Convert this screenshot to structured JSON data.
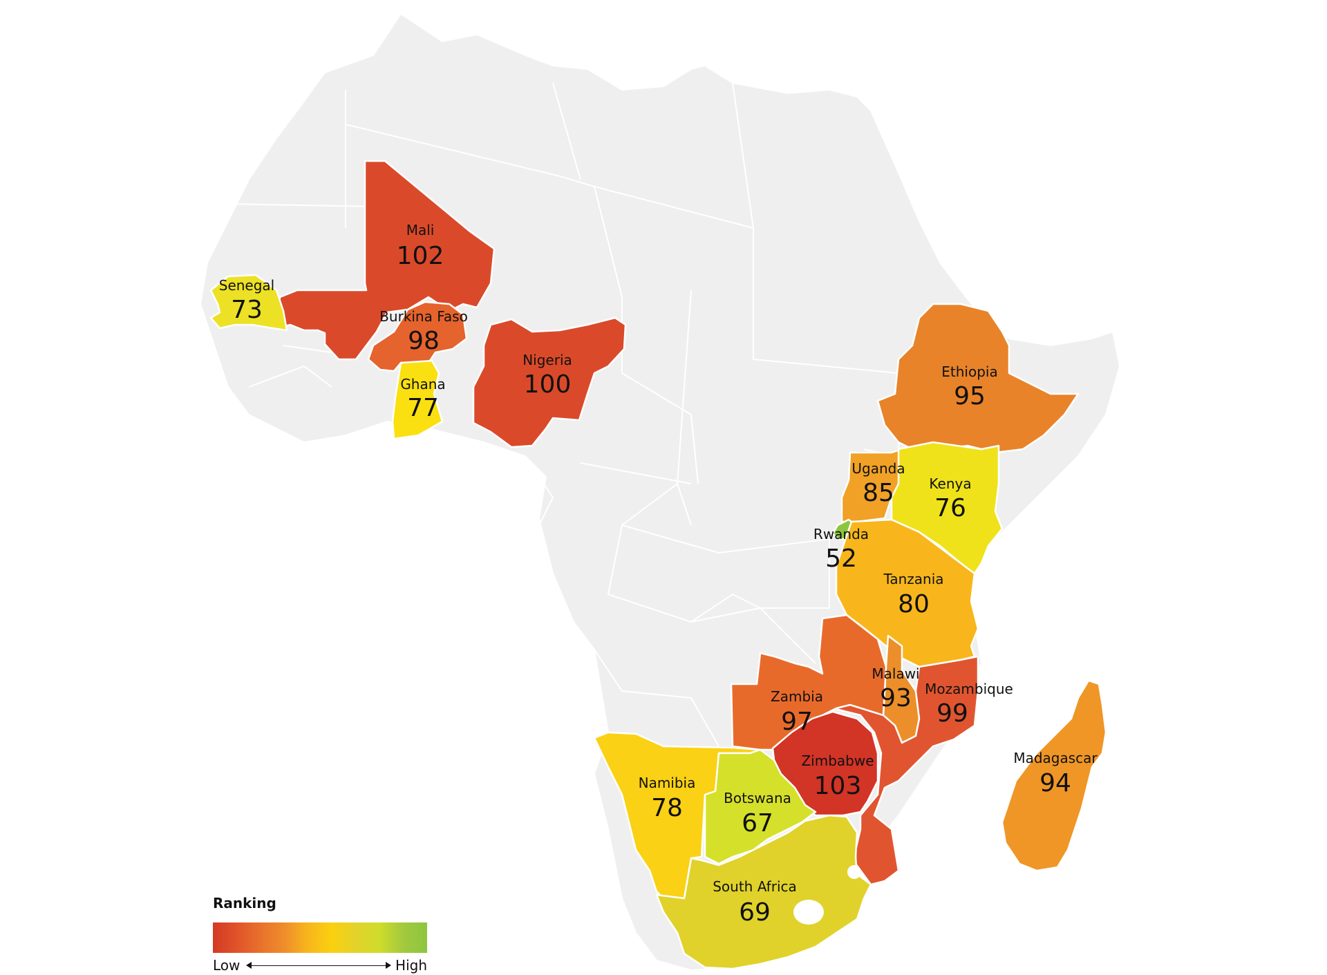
{
  "legend": {
    "title": "Ranking",
    "low": "Low",
    "high": "High",
    "colors": [
      "#d33a24",
      "#e0532a",
      "#e8712c",
      "#ef8d2b",
      "#f8b61c",
      "#fbd010",
      "#e3d22a",
      "#cfdc2b",
      "#a3c93e",
      "#8cc63f"
    ]
  },
  "countries": [
    {
      "id": "mali",
      "name": "Mali",
      "value": "102",
      "color": "#da4a2a"
    },
    {
      "id": "senegal",
      "name": "Senegal",
      "value": "73",
      "color": "#ece124"
    },
    {
      "id": "burkina-faso",
      "name": "Burkina Faso",
      "value": "98",
      "color": "#e5632c"
    },
    {
      "id": "ghana",
      "name": "Ghana",
      "value": "77",
      "color": "#fae010"
    },
    {
      "id": "nigeria",
      "name": "Nigeria",
      "value": "100",
      "color": "#da4a2a"
    },
    {
      "id": "ethiopia",
      "name": "Ethiopia",
      "value": "95",
      "color": "#e8832a"
    },
    {
      "id": "uganda",
      "name": "Uganda",
      "value": "85",
      "color": "#f0a126"
    },
    {
      "id": "kenya",
      "name": "Kenya",
      "value": "76",
      "color": "#efe21a"
    },
    {
      "id": "rwanda",
      "name": "Rwanda",
      "value": "52",
      "color": "#8cc63f"
    },
    {
      "id": "tanzania",
      "name": "Tanzania",
      "value": "80",
      "color": "#f8b61c"
    },
    {
      "id": "malawi",
      "name": "Malawi",
      "value": "93",
      "color": "#ec8f2a"
    },
    {
      "id": "mozambique",
      "name": "Mozambique",
      "value": "99",
      "color": "#e05530"
    },
    {
      "id": "zambia",
      "name": "Zambia",
      "value": "97",
      "color": "#e86a2b"
    },
    {
      "id": "zimbabwe",
      "name": "Zimbabwe",
      "value": "103",
      "color": "#d23426"
    },
    {
      "id": "namibia",
      "name": "Namibia",
      "value": "78",
      "color": "#fad114"
    },
    {
      "id": "botswana",
      "name": "Botswana",
      "value": "67",
      "color": "#d5e02a"
    },
    {
      "id": "south-africa",
      "name": "South Africa",
      "value": "69",
      "color": "#e0d22a"
    },
    {
      "id": "madagascar",
      "name": "Madagascar",
      "value": "94",
      "color": "#ef9626"
    }
  ]
}
